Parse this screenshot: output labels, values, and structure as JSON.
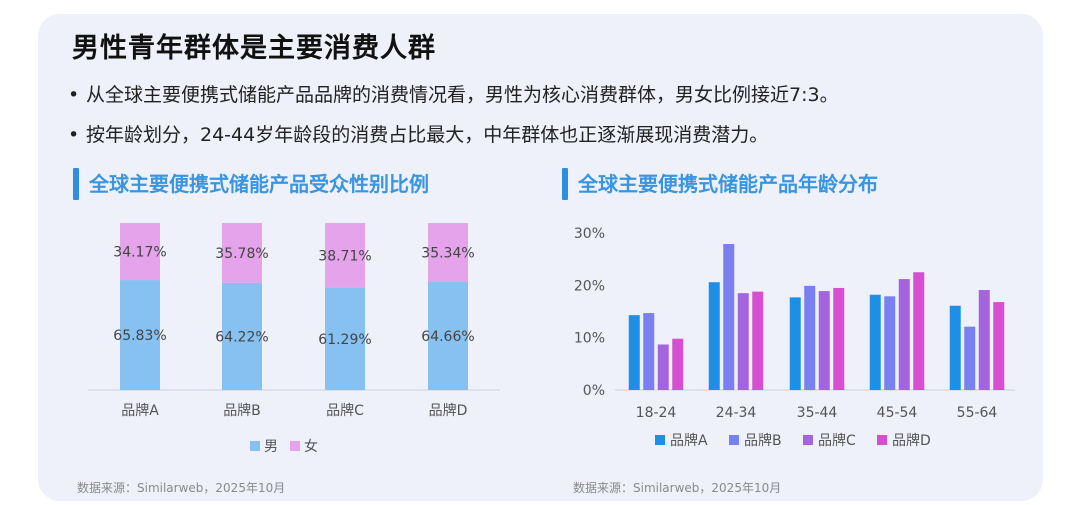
{
  "title": "男性青年群体是主要消费人群",
  "bullets": [
    "从全球主要便携式储能产品品牌的消费情况看，男性为核心消费群体，男女比例接近7:3。",
    "按年龄划分，24-44岁年龄段的消费占比最大，中年群体也正逐渐展现消费潜力。"
  ],
  "bullet_glyph": "•",
  "sections": {
    "left_title": "全球主要便携式储能产品受众性别比例",
    "right_title": "全球主要便携式储能产品年龄分布"
  },
  "sources": {
    "left": "数据来源：Similarweb，2025年10月",
    "right": "数据来源：Similarweb，2025年10月"
  },
  "chart_data": [
    {
      "type": "bar",
      "stacked": true,
      "categories": [
        "品牌A",
        "品牌B",
        "品牌C",
        "品牌D"
      ],
      "series": [
        {
          "name": "男",
          "values": [
            65.83,
            64.22,
            61.29,
            64.66
          ],
          "labels": [
            "65.83%",
            "64.22%",
            "61.29%",
            "64.66%"
          ],
          "color": "#86c1f1"
        },
        {
          "name": "女",
          "values": [
            34.17,
            35.78,
            38.71,
            35.34
          ],
          "labels": [
            "34.17%",
            "35.78%",
            "38.71%",
            "35.34%"
          ],
          "color": "#e4a3ea"
        }
      ],
      "ylim": [
        0,
        100
      ],
      "legend": "bottom",
      "grid": false
    },
    {
      "type": "bar",
      "categories": [
        "18-24",
        "24-34",
        "35-44",
        "45-54",
        "55-64"
      ],
      "series": [
        {
          "name": "品牌A",
          "values": [
            14.3,
            20.6,
            17.7,
            18.2,
            16.1
          ],
          "color": "#1e8fe6"
        },
        {
          "name": "品牌B",
          "values": [
            14.7,
            27.9,
            19.9,
            17.9,
            12.1
          ],
          "color": "#7a80ef"
        },
        {
          "name": "品牌C",
          "values": [
            8.7,
            18.5,
            18.9,
            21.2,
            19.1
          ],
          "color": "#a464e0"
        },
        {
          "name": "品牌D",
          "values": [
            9.8,
            18.8,
            19.5,
            22.5,
            16.8
          ],
          "color": "#d64fd1"
        }
      ],
      "yticks": [
        "0%",
        "10%",
        "20%",
        "30%"
      ],
      "ylim": [
        0,
        30
      ],
      "legend": "bottom",
      "grid": false
    }
  ]
}
